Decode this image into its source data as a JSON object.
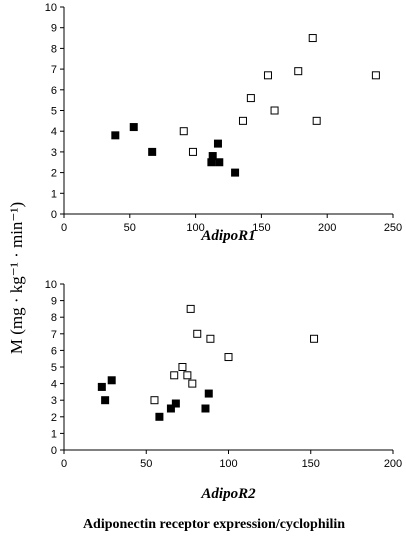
{
  "figure": {
    "ylabel": "M (mg · kg⁻¹ · min⁻¹)",
    "caption": "Adiponectin receptor expression/cyclophilin"
  },
  "chart_data": [
    {
      "type": "scatter",
      "xlabel": "AdipoR1",
      "xlim": [
        0,
        250
      ],
      "ylim": [
        0,
        10
      ],
      "xticks": [
        0,
        50,
        100,
        150,
        200,
        250
      ],
      "yticks": [
        0,
        1,
        2,
        3,
        4,
        5,
        6,
        7,
        8,
        9,
        10
      ],
      "grid": false,
      "series": [
        {
          "marker": "filled-square",
          "color": "#000000",
          "x": [
            39,
            53,
            67,
            112,
            113,
            117,
            118,
            130
          ],
          "y": [
            3.8,
            4.2,
            3.0,
            2.5,
            2.8,
            3.4,
            2.5,
            2.0
          ]
        },
        {
          "marker": "open-square",
          "color": "#000000",
          "x": [
            91,
            98,
            136,
            142,
            155,
            160,
            178,
            189,
            192,
            237
          ],
          "y": [
            4.0,
            3.0,
            4.5,
            5.6,
            6.7,
            5.0,
            6.9,
            8.5,
            4.5,
            6.7
          ]
        }
      ]
    },
    {
      "type": "scatter",
      "xlabel": "AdipoR2",
      "xlim": [
        0,
        200
      ],
      "ylim": [
        0,
        10
      ],
      "xticks": [
        0,
        50,
        100,
        150,
        200
      ],
      "yticks": [
        0,
        1,
        2,
        3,
        4,
        5,
        6,
        7,
        8,
        9,
        10
      ],
      "grid": false,
      "series": [
        {
          "marker": "filled-square",
          "color": "#000000",
          "x": [
            23,
            25,
            29,
            58,
            65,
            68,
            86,
            88
          ],
          "y": [
            3.8,
            3.0,
            4.2,
            2.0,
            2.5,
            2.8,
            2.5,
            3.4
          ]
        },
        {
          "marker": "open-square",
          "color": "#000000",
          "x": [
            55,
            67,
            72,
            75,
            77,
            78,
            81,
            89,
            100,
            152
          ],
          "y": [
            3.0,
            4.5,
            5.0,
            4.5,
            8.5,
            4.0,
            7.0,
            6.7,
            5.6,
            6.7
          ]
        }
      ]
    }
  ]
}
